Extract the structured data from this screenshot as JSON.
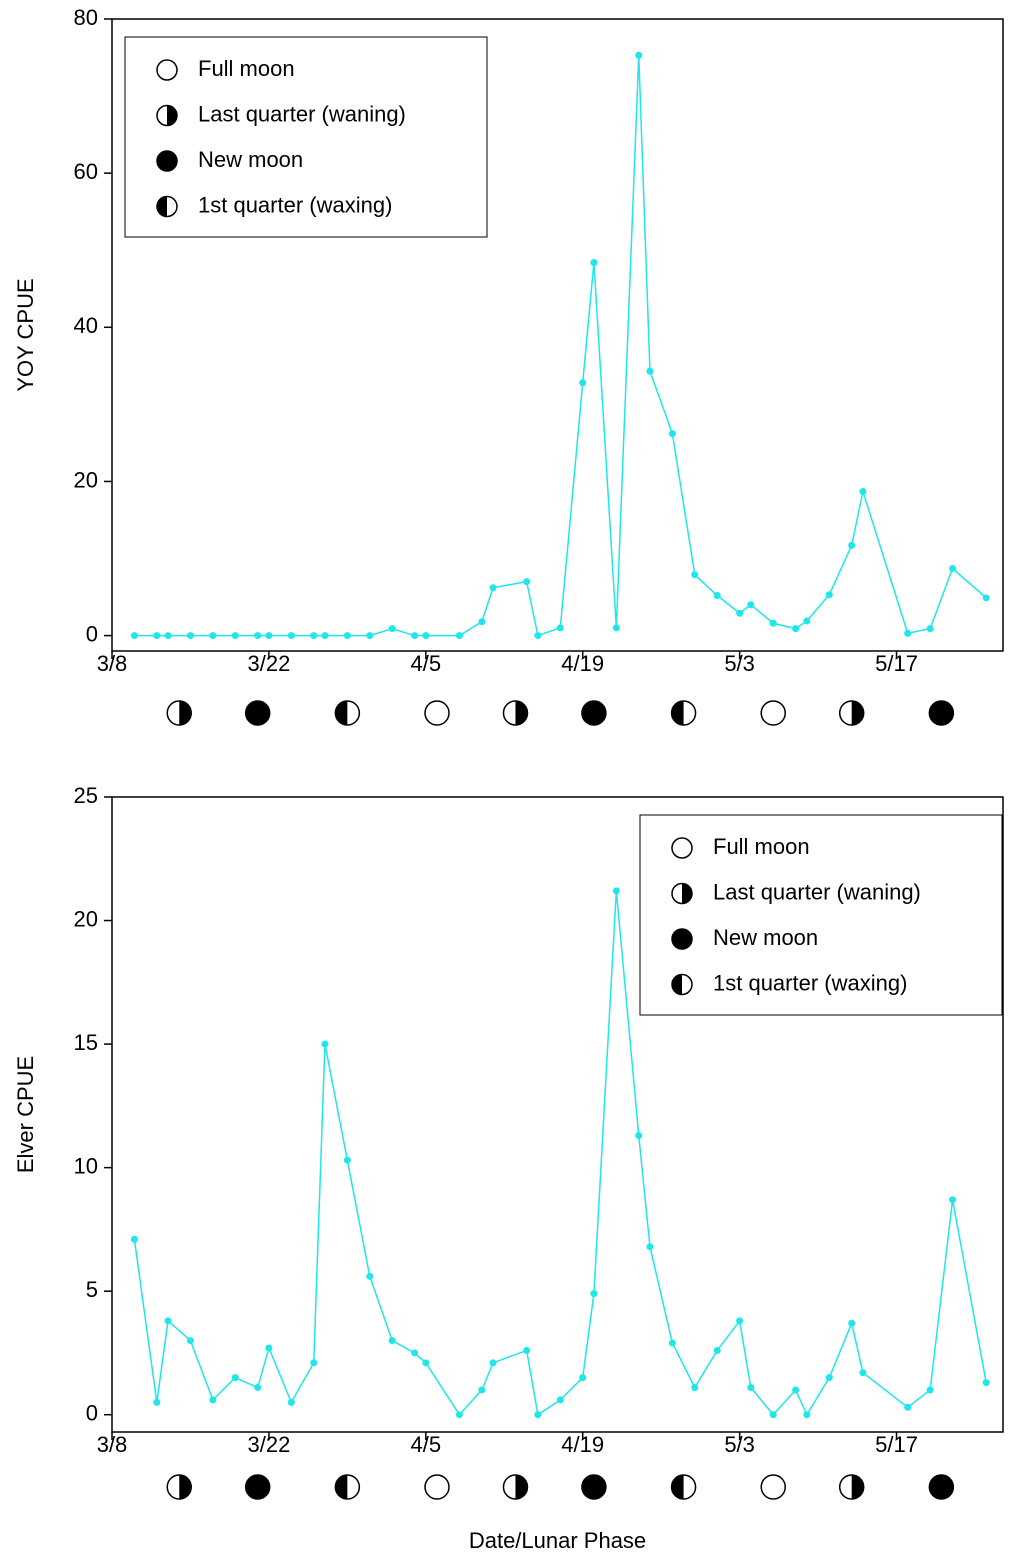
{
  "chart_data": [
    {
      "type": "line",
      "ylabel": "YOY CPUE",
      "color": "#1ee6ea",
      "x": [
        69,
        71,
        72,
        74,
        76,
        78,
        80,
        81,
        83,
        85,
        86,
        88,
        90,
        92,
        94,
        95,
        98,
        100,
        101,
        104,
        105,
        107,
        109,
        110,
        112,
        114,
        115,
        117,
        119,
        121,
        123,
        124,
        126,
        128,
        129,
        131,
        133,
        134,
        138,
        140,
        142,
        145
      ],
      "values": [
        0,
        0,
        0,
        0,
        0,
        0,
        0,
        0,
        0,
        0,
        0,
        0,
        0,
        0.9,
        0,
        0,
        0,
        1.8,
        6.2,
        7,
        0,
        1,
        32.8,
        48.4,
        1,
        75.3,
        34.3,
        26.2,
        7.9,
        5.2,
        2.9,
        4,
        1.6,
        0.9,
        1.9,
        5.3,
        11.7,
        18.7,
        0.3,
        0.9,
        8.7,
        4.9
      ],
      "xlim": [
        67,
        146.5
      ],
      "ylim": [
        -2,
        80
      ],
      "xticks": [
        {
          "value": 67,
          "label": "3/8"
        },
        {
          "value": 81,
          "label": "3/22"
        },
        {
          "value": 95,
          "label": "4/5"
        },
        {
          "value": 109,
          "label": "4/19"
        },
        {
          "value": 123,
          "label": "5/3"
        },
        {
          "value": 137,
          "label": "5/17"
        }
      ],
      "yticks": [
        0,
        20,
        40,
        60,
        80
      ],
      "legend": {
        "loc": "upper left",
        "labels": [
          "Full moon",
          "Last quarter (waning)",
          "New moon",
          "1st quarter (waxing)"
        ]
      },
      "lunar_phases": {
        "x": [
          73,
          80,
          88,
          96,
          103,
          110,
          118,
          126,
          133,
          141
        ],
        "symbol": [
          1,
          2,
          3,
          0,
          1,
          2,
          3,
          0,
          1,
          2
        ]
      }
    },
    {
      "type": "line",
      "ylabel": "Elver CPUE",
      "xlabel": "Date/Lunar Phase",
      "color": "#1ee6ea",
      "x": [
        69,
        71,
        72,
        74,
        76,
        78,
        80,
        81,
        83,
        85,
        86,
        88,
        90,
        92,
        94,
        95,
        98,
        100,
        101,
        104,
        105,
        107,
        109,
        110,
        112,
        114,
        115,
        117,
        119,
        121,
        123,
        124,
        126,
        128,
        129,
        131,
        133,
        134,
        138,
        140,
        142,
        145
      ],
      "values": [
        7.1,
        0.5,
        3.8,
        3,
        0.6,
        1.5,
        1.1,
        2.7,
        0.5,
        2.1,
        15,
        10.3,
        5.6,
        3,
        2.5,
        2.1,
        0,
        1,
        2.1,
        2.6,
        0,
        0.6,
        1.5,
        4.9,
        21.2,
        11.3,
        6.8,
        2.9,
        1.1,
        2.6,
        3.8,
        1.1,
        0,
        1,
        0,
        1.5,
        3.7,
        1.7,
        0.3,
        1,
        8.7,
        1.3
      ],
      "xlim": [
        67,
        146.5
      ],
      "ylim": [
        -0.7,
        25
      ],
      "xticks": [
        {
          "value": 67,
          "label": "3/8"
        },
        {
          "value": 81,
          "label": "3/22"
        },
        {
          "value": 95,
          "label": "4/5"
        },
        {
          "value": 109,
          "label": "4/19"
        },
        {
          "value": 123,
          "label": "5/3"
        },
        {
          "value": 137,
          "label": "5/17"
        }
      ],
      "yticks": [
        0,
        5,
        10,
        15,
        20,
        25
      ],
      "legend": {
        "loc": "upper right",
        "labels": [
          "Full moon",
          "Last quarter (waning)",
          "New moon",
          "1st quarter (waxing)"
        ]
      },
      "lunar_phases": {
        "x": [
          73,
          80,
          88,
          96,
          103,
          110,
          118,
          126,
          133,
          141
        ],
        "symbol": [
          1,
          2,
          3,
          0,
          1,
          2,
          3,
          0,
          1,
          2
        ]
      }
    }
  ]
}
